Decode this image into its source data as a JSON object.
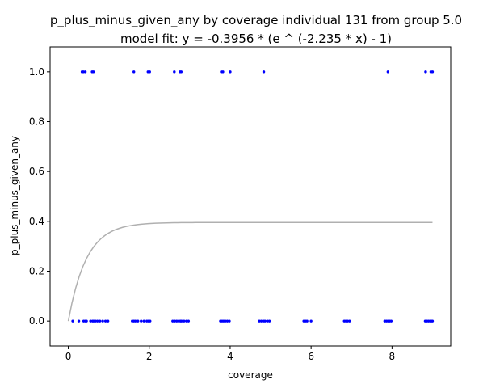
{
  "chart_data": {
    "type": "scatter",
    "title": "p_plus_minus_given_any by coverage individual 131 from group 5.0",
    "subtitle": "model fit: y = -0.3956 * (e ^ (-2.235 * x) - 1)",
    "xlabel": "coverage",
    "ylabel": "p_plus_minus_given_any",
    "xlim": [
      -0.45,
      9.45
    ],
    "ylim": [
      -0.1,
      1.1
    ],
    "xticks": [
      0,
      2,
      4,
      6,
      8
    ],
    "yticks": [
      0.0,
      0.2,
      0.4,
      0.6,
      0.8,
      1.0
    ],
    "xtick_labels": [
      "0",
      "2",
      "4",
      "6",
      "8"
    ],
    "ytick_labels": [
      "0.0",
      "0.2",
      "0.4",
      "0.6",
      "0.8",
      "1.0"
    ],
    "grid": false,
    "point_color": "#0000ff",
    "fit_color": "#b0b0b0",
    "fit": {
      "a": 0.3956,
      "b": 2.235,
      "x_range": [
        0,
        9
      ]
    },
    "points": [
      {
        "x": 0.34,
        "y": 1
      },
      {
        "x": 0.37,
        "y": 1
      },
      {
        "x": 0.42,
        "y": 1
      },
      {
        "x": 0.59,
        "y": 1
      },
      {
        "x": 0.62,
        "y": 1
      },
      {
        "x": 1.62,
        "y": 1
      },
      {
        "x": 1.97,
        "y": 1
      },
      {
        "x": 2.01,
        "y": 1
      },
      {
        "x": 2.62,
        "y": 1
      },
      {
        "x": 2.76,
        "y": 1
      },
      {
        "x": 2.79,
        "y": 1
      },
      {
        "x": 3.78,
        "y": 1
      },
      {
        "x": 3.82,
        "y": 1
      },
      {
        "x": 4.0,
        "y": 1
      },
      {
        "x": 4.83,
        "y": 1
      },
      {
        "x": 7.9,
        "y": 1
      },
      {
        "x": 8.83,
        "y": 1
      },
      {
        "x": 8.96,
        "y": 1
      },
      {
        "x": 9.0,
        "y": 1
      },
      {
        "x": 0.11,
        "y": 0
      },
      {
        "x": 0.26,
        "y": 0
      },
      {
        "x": 0.38,
        "y": 0
      },
      {
        "x": 0.42,
        "y": 0
      },
      {
        "x": 0.45,
        "y": 0
      },
      {
        "x": 0.55,
        "y": 0
      },
      {
        "x": 0.6,
        "y": 0
      },
      {
        "x": 0.63,
        "y": 0
      },
      {
        "x": 0.67,
        "y": 0
      },
      {
        "x": 0.72,
        "y": 0
      },
      {
        "x": 0.78,
        "y": 0
      },
      {
        "x": 0.85,
        "y": 0
      },
      {
        "x": 0.92,
        "y": 0
      },
      {
        "x": 0.98,
        "y": 0
      },
      {
        "x": 1.58,
        "y": 0
      },
      {
        "x": 1.62,
        "y": 0
      },
      {
        "x": 1.66,
        "y": 0
      },
      {
        "x": 1.72,
        "y": 0
      },
      {
        "x": 1.8,
        "y": 0
      },
      {
        "x": 1.87,
        "y": 0
      },
      {
        "x": 1.94,
        "y": 0
      },
      {
        "x": 1.98,
        "y": 0
      },
      {
        "x": 2.02,
        "y": 0
      },
      {
        "x": 2.58,
        "y": 0
      },
      {
        "x": 2.63,
        "y": 0
      },
      {
        "x": 2.68,
        "y": 0
      },
      {
        "x": 2.73,
        "y": 0
      },
      {
        "x": 2.77,
        "y": 0
      },
      {
        "x": 2.8,
        "y": 0
      },
      {
        "x": 2.86,
        "y": 0
      },
      {
        "x": 2.92,
        "y": 0
      },
      {
        "x": 2.97,
        "y": 0
      },
      {
        "x": 3.76,
        "y": 0
      },
      {
        "x": 3.8,
        "y": 0
      },
      {
        "x": 3.84,
        "y": 0
      },
      {
        "x": 3.88,
        "y": 0
      },
      {
        "x": 3.93,
        "y": 0
      },
      {
        "x": 3.98,
        "y": 0
      },
      {
        "x": 4.72,
        "y": 0
      },
      {
        "x": 4.77,
        "y": 0
      },
      {
        "x": 4.82,
        "y": 0
      },
      {
        "x": 4.86,
        "y": 0
      },
      {
        "x": 4.92,
        "y": 0
      },
      {
        "x": 4.97,
        "y": 0
      },
      {
        "x": 5.82,
        "y": 0
      },
      {
        "x": 5.86,
        "y": 0
      },
      {
        "x": 5.9,
        "y": 0
      },
      {
        "x": 6.0,
        "y": 0
      },
      {
        "x": 6.82,
        "y": 0
      },
      {
        "x": 6.86,
        "y": 0
      },
      {
        "x": 6.9,
        "y": 0
      },
      {
        "x": 6.95,
        "y": 0
      },
      {
        "x": 7.82,
        "y": 0
      },
      {
        "x": 7.86,
        "y": 0
      },
      {
        "x": 7.9,
        "y": 0
      },
      {
        "x": 7.94,
        "y": 0
      },
      {
        "x": 7.98,
        "y": 0
      },
      {
        "x": 8.82,
        "y": 0
      },
      {
        "x": 8.86,
        "y": 0
      },
      {
        "x": 8.9,
        "y": 0
      },
      {
        "x": 8.94,
        "y": 0
      },
      {
        "x": 8.97,
        "y": 0
      },
      {
        "x": 9.0,
        "y": 0
      }
    ]
  }
}
